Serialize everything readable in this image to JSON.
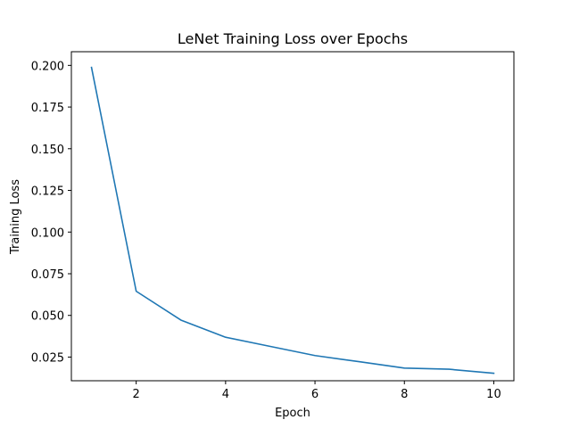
{
  "chart_data": {
    "type": "line",
    "title": "LeNet Training Loss over Epochs",
    "xlabel": "Epoch",
    "ylabel": "Training Loss",
    "xlim": [
      0.55,
      10.45
    ],
    "ylim": [
      0.0108,
      0.2082
    ],
    "xticks": [
      2,
      4,
      6,
      8,
      10
    ],
    "yticks": [
      0.025,
      0.05,
      0.075,
      0.1,
      0.125,
      0.15,
      0.175,
      0.2
    ],
    "ytick_labels": [
      "0.025",
      "0.050",
      "0.075",
      "0.100",
      "0.125",
      "0.150",
      "0.175",
      "0.200"
    ],
    "grid": false,
    "series": [
      {
        "color": "#1f77b4",
        "x": [
          1,
          2,
          3,
          4,
          5,
          6,
          7,
          8,
          9,
          10
        ],
        "y": [
          0.1988,
          0.0645,
          0.0472,
          0.0369,
          0.0314,
          0.0259,
          0.0222,
          0.0184,
          0.0177,
          0.0153
        ]
      }
    ]
  }
}
